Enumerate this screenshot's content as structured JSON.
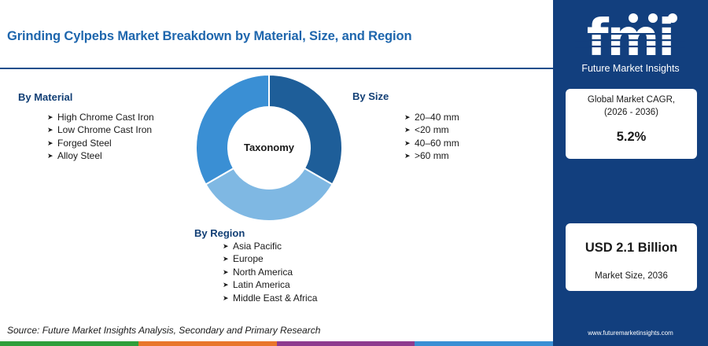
{
  "title": "Grinding Cylpebs Market Breakdown by Material, Size, and Region",
  "center_label": "Taxonomy",
  "groups": {
    "material": {
      "heading": "By Material",
      "items": [
        "High Chrome Cast Iron",
        "Low Chrome Cast Iron",
        "Forged Steel",
        "Alloy Steel"
      ]
    },
    "size": {
      "heading": "By Size",
      "items": [
        "20–40 mm",
        "<20 mm",
        "40–60 mm",
        ">60 mm"
      ]
    },
    "region": {
      "heading": "By Region",
      "items": [
        "Asia Pacific",
        "Europe",
        "North America",
        "Latin America",
        "Middle East & Africa"
      ]
    }
  },
  "donut": {
    "segments": [
      {
        "color": "#1e5e99",
        "value": 1
      },
      {
        "color": "#7fb8e3",
        "value": 1
      },
      {
        "color": "#3a8fd4",
        "value": 1
      }
    ]
  },
  "source": "Source: Future Market Insights Analysis, Secondary and Primary Research",
  "footer_colors": [
    "#2f9e3a",
    "#e8762b",
    "#8e3b8f",
    "#3a8fd4"
  ],
  "sidebar": {
    "logo_text": "fmi",
    "brand": "Future Market Insights",
    "cagr_label_line1": "Global Market CAGR,",
    "cagr_label_line2": "(2026 - 2036)",
    "cagr_value": "5.2%",
    "size_value": "USD 2.1 Billion",
    "size_label": "Market Size, 2036",
    "website": "www.futuremarketinsights.com"
  }
}
